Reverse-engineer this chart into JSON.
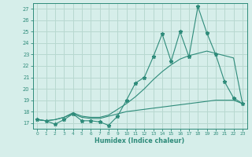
{
  "xlabel": "Humidex (Indice chaleur)",
  "bg_color": "#d6eeea",
  "grid_color": "#b8d8d0",
  "line_color": "#2e8b7a",
  "xlim": [
    -0.5,
    23.5
  ],
  "ylim": [
    16.5,
    27.5
  ],
  "xticks": [
    0,
    1,
    2,
    3,
    4,
    5,
    6,
    7,
    8,
    9,
    10,
    11,
    12,
    13,
    14,
    15,
    16,
    17,
    18,
    19,
    20,
    21,
    22,
    23
  ],
  "yticks": [
    17,
    18,
    19,
    20,
    21,
    22,
    23,
    24,
    25,
    26,
    27
  ],
  "y_zigzag": [
    17.3,
    17.2,
    16.9,
    17.3,
    17.8,
    17.2,
    17.2,
    17.1,
    16.8,
    17.6,
    19.0,
    20.5,
    21.0,
    22.8,
    24.8,
    22.4,
    25.0,
    22.8,
    27.2,
    24.9,
    23.0,
    20.6,
    19.2,
    18.7
  ],
  "y_diag": [
    17.3,
    17.2,
    17.3,
    17.5,
    17.9,
    17.6,
    17.5,
    17.5,
    17.7,
    18.2,
    18.7,
    19.3,
    20.0,
    20.8,
    21.5,
    22.1,
    22.6,
    22.9,
    23.1,
    23.3,
    23.1,
    22.9,
    22.7,
    18.7
  ],
  "y_flat": [
    17.3,
    17.2,
    17.3,
    17.5,
    17.8,
    17.5,
    17.4,
    17.4,
    17.6,
    17.8,
    18.0,
    18.1,
    18.2,
    18.3,
    18.4,
    18.5,
    18.6,
    18.7,
    18.8,
    18.9,
    19.0,
    19.0,
    19.0,
    18.7
  ]
}
